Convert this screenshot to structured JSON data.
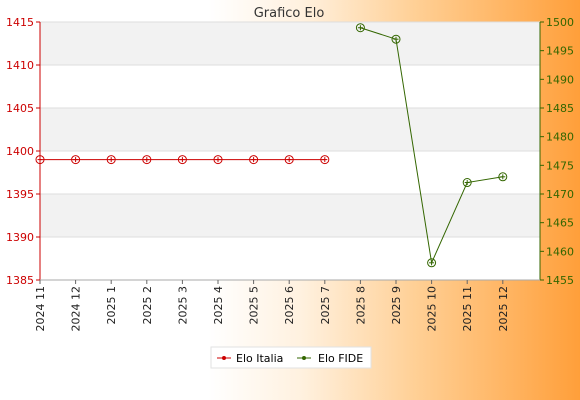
{
  "chart_data": {
    "type": "line",
    "title": "Grafico Elo",
    "categories": [
      "2024 11",
      "2024 12",
      "2025 1",
      "2025 2",
      "2025 3",
      "2025 4",
      "2025 5",
      "2025 6",
      "2025 7",
      "2025 8",
      "2025 9",
      "2025 10",
      "2025 11",
      "2025 12"
    ],
    "y_left": {
      "min": 1385,
      "max": 1415,
      "ticks": [
        1385,
        1390,
        1395,
        1400,
        1405,
        1410,
        1415
      ],
      "color": "#cc0000"
    },
    "y_right": {
      "min": 1455,
      "max": 1500,
      "ticks": [
        1455,
        1460,
        1465,
        1470,
        1475,
        1480,
        1485,
        1490,
        1495,
        1500
      ],
      "color": "#336600"
    },
    "grid": true,
    "legend_position": "bottom",
    "series": [
      {
        "name": "Elo Italia",
        "axis": "left",
        "color": "#cc0000",
        "values": [
          1399,
          1399,
          1399,
          1399,
          1399,
          1399,
          1399,
          1399,
          1399,
          null,
          null,
          null,
          null,
          null
        ]
      },
      {
        "name": "Elo FIDE",
        "axis": "right",
        "color": "#336600",
        "values": [
          null,
          null,
          null,
          null,
          null,
          null,
          null,
          null,
          null,
          1499,
          1497,
          1458,
          1472,
          1473
        ]
      }
    ]
  }
}
